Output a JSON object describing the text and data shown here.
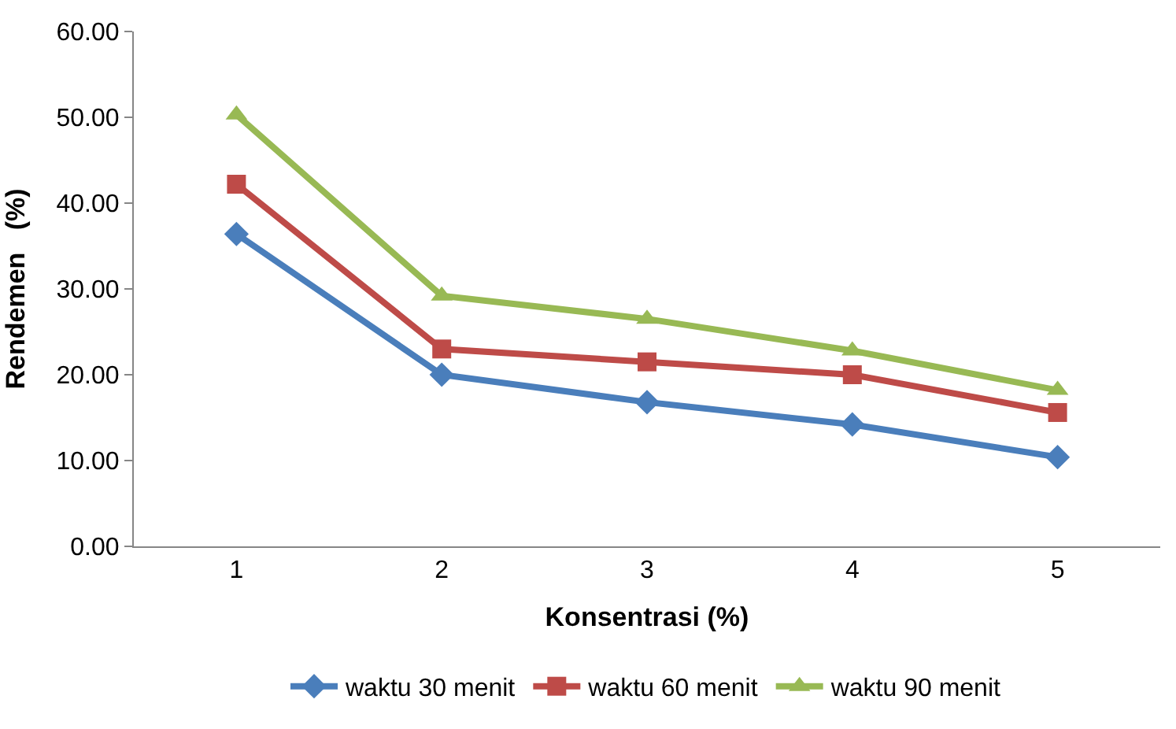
{
  "chart_data": {
    "type": "line",
    "xlabel": "Konsentrasi (%)",
    "ylabel": "Rendemen   (%)",
    "categories": [
      "1",
      "2",
      "3",
      "4",
      "5"
    ],
    "series": [
      {
        "name": "waktu 30 menit",
        "color": "#4a7ebb",
        "marker": "diamond",
        "values": [
          36.4,
          20.0,
          16.8,
          14.2,
          10.4
        ]
      },
      {
        "name": "waktu 60 menit",
        "color": "#be4b48",
        "marker": "square",
        "values": [
          42.2,
          23.0,
          21.5,
          20.0,
          15.6
        ]
      },
      {
        "name": "waktu 90 menit",
        "color": "#98b954",
        "marker": "triangle",
        "values": [
          50.3,
          29.2,
          26.5,
          22.8,
          18.2
        ]
      }
    ],
    "ylim": [
      0,
      60
    ],
    "yticks": [
      {
        "value": 0,
        "label": "0.00"
      },
      {
        "value": 10,
        "label": "10.00"
      },
      {
        "value": 20,
        "label": "20.00"
      },
      {
        "value": 30,
        "label": "30.00"
      },
      {
        "value": 40,
        "label": "40.00"
      },
      {
        "value": 50,
        "label": "50.00"
      },
      {
        "value": 60,
        "label": "60.00"
      }
    ],
    "legend": "bottom",
    "line_style": "solid"
  }
}
